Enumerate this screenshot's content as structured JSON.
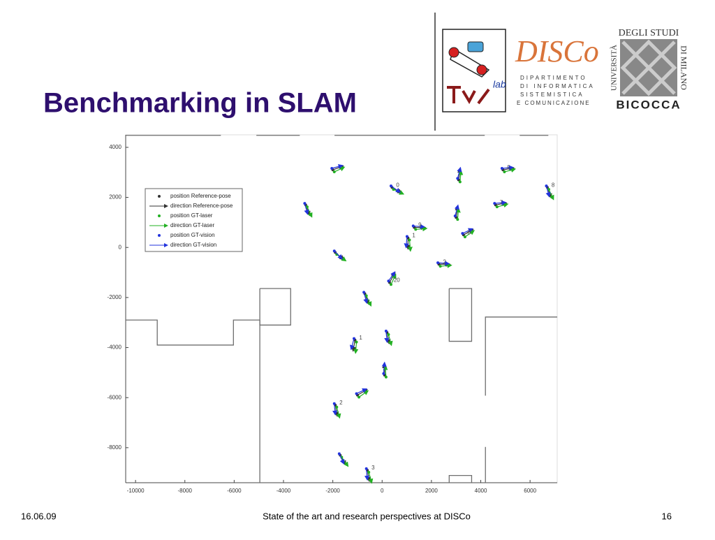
{
  "slide": {
    "title": "Benchmarking in SLAM",
    "footer_left": "16.06.09",
    "footer_center": "State of the art and research perspectives at DISCo",
    "page_number": "16"
  },
  "logos": {
    "lab": "lab",
    "disco": "DISCo",
    "disco_lines": [
      "DIPARTIMENTO",
      "DI INFORMATICA",
      "SISTEMISTICA",
      "E COMUNICAZIONE"
    ],
    "university_vertical_left": "UNIVERSITÀ",
    "university_top": "DEGLI STUDI",
    "university_right": "DI MILANO",
    "university_bottom": "BICOCCA"
  },
  "chart_data": {
    "type": "scatter",
    "xlim": [
      -10400,
      7100
    ],
    "ylim": [
      -9400,
      4500
    ],
    "xticks": [
      -10000,
      -8000,
      -6000,
      -4000,
      -2000,
      0,
      2000,
      4000,
      6000
    ],
    "yticks": [
      -8000,
      -6000,
      -4000,
      -2000,
      0,
      2000,
      4000
    ],
    "legend_position": "upper left",
    "map_color": "#6e6e6e",
    "map_lines": [
      {
        "x": [
          -10400,
          -6540
        ],
        "y": [
          4480,
          4480
        ]
      },
      {
        "x": [
          -5100,
          -3340
        ],
        "y": [
          4480,
          4480
        ]
      },
      {
        "x": [
          -1930,
          4160
        ],
        "y": [
          4480,
          4480
        ]
      },
      {
        "x": [
          5580,
          6740
        ],
        "y": [
          4480,
          4480
        ]
      },
      {
        "x": [
          -10400,
          -9120,
          -9120,
          -6030,
          -6030,
          -4960
        ],
        "y": [
          -2900,
          -2900,
          -3900,
          -3900,
          -2900,
          -2900
        ]
      },
      {
        "x": [
          -4960,
          -4960
        ],
        "y": [
          -2900,
          -9400
        ]
      },
      {
        "x": [
          -4960,
          -3710,
          -3710,
          -4960,
          -4960
        ],
        "y": [
          -1640,
          -1640,
          -3100,
          -3100,
          -1640
        ]
      },
      {
        "x": [
          2720,
          3630,
          3630,
          2720,
          2720
        ],
        "y": [
          -1640,
          -1640,
          -3750,
          -3750,
          -1640
        ]
      },
      {
        "x": [
          4190,
          4190,
          7100
        ],
        "y": [
          -5920,
          -2780,
          -2780
        ]
      },
      {
        "x": [
          4190,
          4190
        ],
        "y": [
          -7970,
          -9400
        ]
      },
      {
        "x": [
          2720,
          2720,
          3630,
          3630
        ],
        "y": [
          -9400,
          -9110,
          -9110,
          -9400
        ]
      }
    ],
    "point_labels": [
      null,
      "0",
      null,
      "5",
      "8",
      null,
      "7",
      null,
      "9",
      "1",
      "8",
      null,
      "2",
      "20",
      null,
      "1",
      null,
      null,
      null,
      "2",
      null,
      "3"
    ],
    "series": [
      {
        "name": "position Reference-pose",
        "direction_name": "direction Reference-pose",
        "color": "#333333",
        "x": [
          -2000,
          400,
          3100,
          4900,
          6700,
          -3100,
          4600,
          3000,
          1300,
          1050,
          3300,
          -1900,
          2300,
          300,
          -700,
          -1100,
          200,
          100,
          -1000,
          -1900,
          -1700,
          -600
        ],
        "y": [
          3100,
          2400,
          2700,
          3100,
          2400,
          1700,
          1700,
          1200,
          800,
          380,
          500,
          -200,
          -670,
          -1400,
          -1850,
          -3700,
          -3400,
          -5100,
          -5900,
          -6300,
          -8300,
          -8900
        ],
        "heading": [
          20,
          -30,
          80,
          10,
          -70,
          -70,
          10,
          80,
          0,
          -90,
          30,
          -40,
          0,
          60,
          -70,
          -100,
          -80,
          90,
          30,
          -80,
          -60,
          -80
        ]
      },
      {
        "name": "position GT-laser",
        "direction_name": "direction GT-laser",
        "color": "#22b022",
        "x": [
          -1940,
          460,
          3160,
          4960,
          6760,
          -3040,
          4660,
          3060,
          1360,
          1110,
          3360,
          -1840,
          2360,
          360,
          -640,
          -1040,
          260,
          160,
          -940,
          -1840,
          -1640,
          -540
        ],
        "y": [
          3020,
          2320,
          2620,
          3020,
          2320,
          1620,
          1620,
          1120,
          720,
          300,
          420,
          -280,
          -750,
          -1480,
          -1930,
          -3780,
          -3480,
          -5180,
          -5980,
          -6380,
          -8380,
          -8980
        ],
        "heading": [
          25,
          -25,
          85,
          15,
          -65,
          -65,
          15,
          85,
          5,
          -85,
          35,
          -35,
          5,
          65,
          -65,
          -95,
          -75,
          95,
          35,
          -75,
          -55,
          -75
        ]
      },
      {
        "name": "position GT-vision",
        "direction_name": "direction GT-vision",
        "color": "#2233dd",
        "x": [
          -2040,
          360,
          3060,
          4860,
          6660,
          -3140,
          4560,
          2960,
          1260,
          1010,
          3260,
          -1940,
          2260,
          260,
          -740,
          -1140,
          160,
          60,
          -1040,
          -1940,
          -1740,
          -640
        ],
        "y": [
          3160,
          2460,
          2760,
          3160,
          2460,
          1760,
          1760,
          1260,
          860,
          440,
          560,
          -140,
          -610,
          -1340,
          -1790,
          -3640,
          -3340,
          -5040,
          -5840,
          -6240,
          -8240,
          -8840
        ],
        "heading": [
          15,
          -35,
          75,
          5,
          -75,
          -75,
          5,
          75,
          -5,
          -95,
          25,
          -45,
          -5,
          55,
          -75,
          -105,
          -85,
          85,
          25,
          -85,
          -65,
          -85
        ]
      }
    ]
  }
}
